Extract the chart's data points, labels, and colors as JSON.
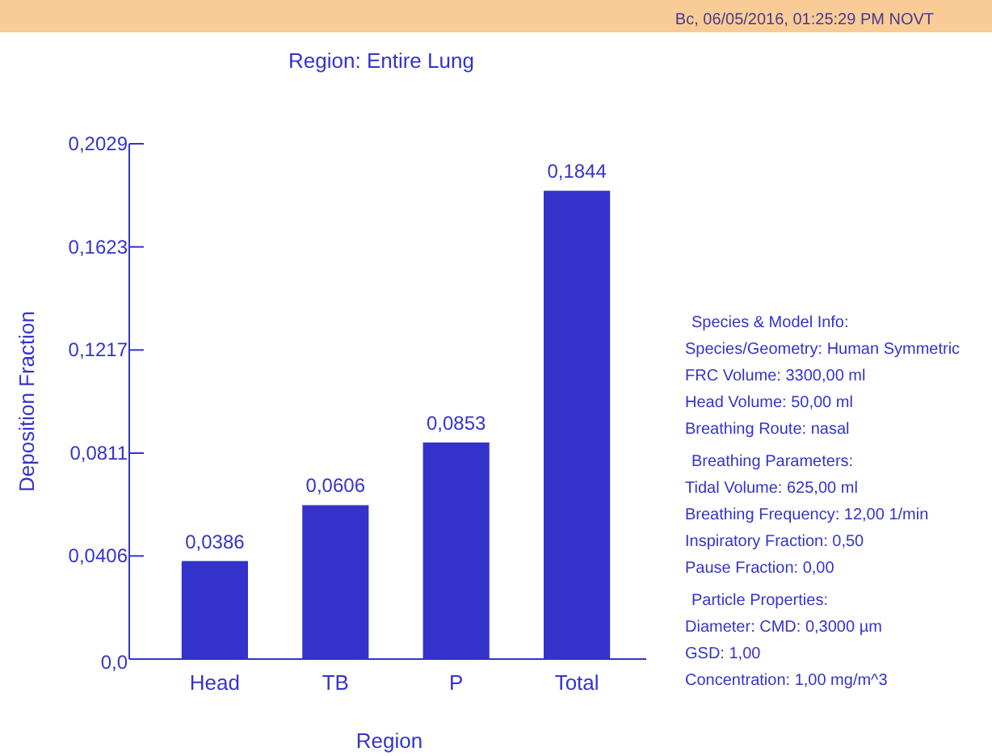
{
  "chart_data": {
    "type": "bar",
    "title": "Region: Entire Lung",
    "xlabel": "Region",
    "ylabel": "Deposition Fraction",
    "categories": [
      "Head",
      "TB",
      "P",
      "Total"
    ],
    "values": [
      0.0386,
      0.0606,
      0.0853,
      0.1844
    ],
    "value_labels": [
      "0,0386",
      "0,0606",
      "0,0853",
      "0,1844"
    ],
    "color": "#3333cc",
    "ylim": [
      0,
      0.2029
    ],
    "yticks": [
      {
        "value": 0,
        "label": "0,0"
      },
      {
        "value": 0.0406,
        "label": "0,0406"
      },
      {
        "value": 0.0811,
        "label": "0,0811"
      },
      {
        "value": 0.1217,
        "label": "0,1217"
      },
      {
        "value": 0.1623,
        "label": "0,1623"
      },
      {
        "value": 0.2029,
        "label": "0,2029"
      }
    ],
    "grid": false,
    "annotations": [
      "Вс, 06/05/2016, 01:25:29 PM NOVT",
      "Species & Model Info:",
      "Species/Geometry: Human Symmetric",
      "FRC Volume: 3300,00 ml",
      "Head Volume: 50,00 ml",
      "Breathing Route: nasal",
      "Breathing Parameters:",
      "Tidal Volume: 625,00 ml",
      "Breathing Frequency: 12,00 1/min",
      "Inspiratory Fraction: 0,50",
      "Pause Fraction: 0,00",
      "Particle Properties:",
      "Diameter: CMD: 0,3000 µm",
      "GSD: 1,00",
      "Concentration: 1,00 mg/m^3"
    ]
  }
}
